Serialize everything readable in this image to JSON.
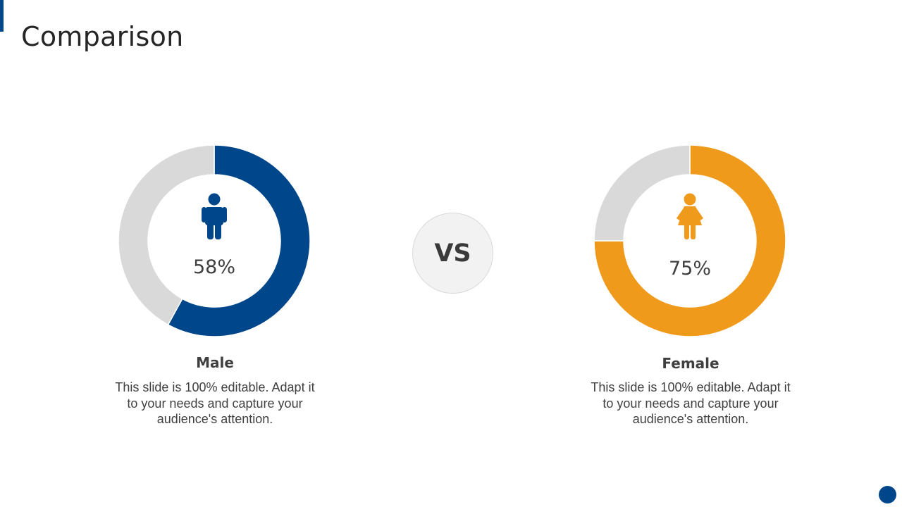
{
  "slide": {
    "title": "Comparison",
    "vs_label": "VS"
  },
  "chart_data": [
    {
      "type": "pie",
      "donut": true,
      "label": "Male",
      "value_label": "58%",
      "values": [
        58,
        42
      ],
      "colors": [
        "#00468b",
        "#d9d9d9"
      ],
      "icon": "male-person-icon",
      "description": "This slide is 100% editable. Adapt it to your needs and capture your audience's attention."
    },
    {
      "type": "pie",
      "donut": true,
      "label": "Female",
      "value_label": "75%",
      "values": [
        75,
        25
      ],
      "colors": [
        "#f09a1c",
        "#d9d9d9"
      ],
      "icon": "female-person-icon",
      "description": "This slide is 100% editable. Adapt it to your needs and capture your audience's attention."
    }
  ],
  "colors": {
    "accent": "#00468b",
    "secondary": "#f09a1c",
    "track": "#d9d9d9"
  }
}
